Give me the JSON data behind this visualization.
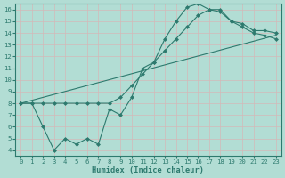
{
  "xlabel": "Humidex (Indice chaleur)",
  "background_color": "#b2ddd4",
  "grid_color": "#d4eee8",
  "line_color": "#2d7a6e",
  "xlim": [
    -0.5,
    23.5
  ],
  "ylim": [
    3.5,
    16.5
  ],
  "xticks": [
    0,
    1,
    2,
    3,
    4,
    5,
    6,
    7,
    8,
    9,
    10,
    11,
    12,
    13,
    14,
    15,
    16,
    17,
    18,
    19,
    20,
    21,
    22,
    23
  ],
  "yticks": [
    4,
    5,
    6,
    7,
    8,
    9,
    10,
    11,
    12,
    13,
    14,
    15,
    16
  ],
  "series1_x": [
    0,
    1,
    2,
    3,
    4,
    5,
    6,
    7,
    8,
    9,
    10,
    11,
    12,
    13,
    14,
    15,
    16,
    17,
    18,
    19,
    20,
    21,
    22,
    23
  ],
  "series1_y": [
    8.0,
    8.0,
    6.0,
    4.0,
    5.0,
    4.5,
    5.0,
    4.5,
    7.5,
    7.0,
    8.5,
    11.0,
    11.5,
    13.5,
    15.0,
    16.2,
    16.5,
    16.0,
    15.8,
    15.0,
    14.8,
    14.2,
    14.2,
    14.0
  ],
  "series2_x": [
    0,
    1,
    2,
    3,
    4,
    5,
    6,
    7,
    8,
    9,
    10,
    11,
    12,
    13,
    14,
    15,
    16,
    17,
    18,
    19,
    20,
    21,
    22,
    23
  ],
  "series2_y": [
    8.0,
    8.0,
    8.0,
    8.0,
    8.0,
    8.0,
    8.0,
    8.0,
    8.0,
    8.5,
    9.5,
    10.5,
    11.5,
    12.5,
    13.5,
    14.5,
    15.5,
    16.0,
    16.0,
    15.0,
    14.5,
    14.0,
    13.8,
    13.5
  ],
  "series3_x": [
    0,
    23
  ],
  "series3_y": [
    8.0,
    13.8
  ]
}
